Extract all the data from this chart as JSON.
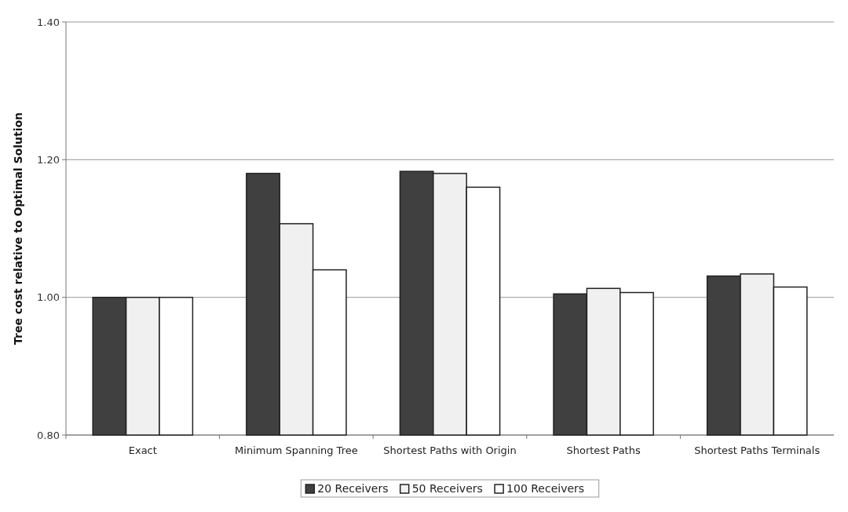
{
  "chart_data": {
    "type": "bar",
    "ylabel": "Tree cost relative to Optimal Solution",
    "categories": [
      "Exact",
      "Minimum Spanning Tree",
      "Shortest Paths with Origin",
      "Shortest Paths",
      "Shortest Paths Terminals"
    ],
    "series": [
      {
        "name": "20 Receivers",
        "color": "#404040",
        "values": [
          1.0,
          1.18,
          1.183,
          1.005,
          1.031
        ]
      },
      {
        "name": "50 Receivers",
        "color": "#f0f0f0",
        "values": [
          1.0,
          1.107,
          1.18,
          1.013,
          1.034
        ]
      },
      {
        "name": "100 Receivers",
        "color": "#ffffff",
        "values": [
          1.0,
          1.04,
          1.16,
          1.007,
          1.015
        ]
      }
    ],
    "ylim": [
      0.8,
      1.4
    ],
    "yticks": [
      {
        "value": 0.8,
        "label": "0.80"
      },
      {
        "value": 1.0,
        "label": "1.00"
      },
      {
        "value": 1.2,
        "label": "1.20"
      },
      {
        "value": 1.4,
        "label": "1.40"
      }
    ],
    "grid": "y",
    "legend": "bottom"
  }
}
